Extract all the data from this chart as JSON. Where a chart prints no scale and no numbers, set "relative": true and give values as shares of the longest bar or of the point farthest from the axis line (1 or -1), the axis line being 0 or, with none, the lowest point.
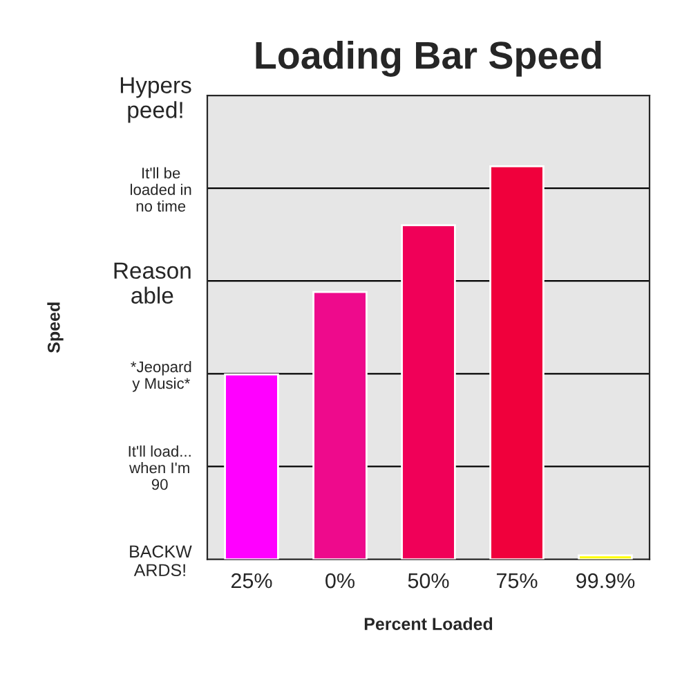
{
  "chart_data": {
    "type": "bar",
    "title": "Loading Bar Speed",
    "xlabel": "Percent Loaded",
    "categories": [
      "25%",
      "0%",
      "50%",
      "75%",
      "99.9%"
    ],
    "values": [
      0.47,
      0.68,
      0.85,
      1,
      0.01
    ],
    "relative": true,
    "colors": [
      "#ff00ff",
      "#ee0a8c",
      "#f00058",
      "#f0003c",
      "#ffff00"
    ],
    "annotations": [
      "Speed",
      "BACKW\nARDS!",
      "It'll load...\nwhen I'm\n90",
      "*Jeopard\ny Music*",
      "Reason\nable",
      "It'll be\nloaded in\nno time",
      "Hypers\npeed!"
    ],
    "grid": "y"
  }
}
